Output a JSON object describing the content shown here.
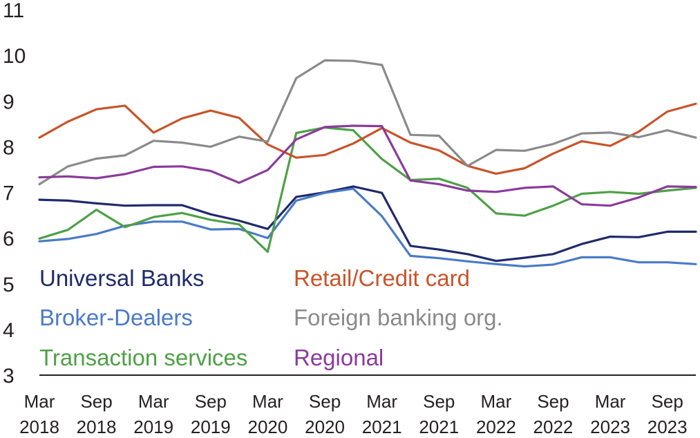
{
  "chart_data": {
    "type": "line",
    "title": "",
    "xlabel": "",
    "ylabel": "",
    "ylim": [
      3,
      11
    ],
    "yticks": [
      3,
      4,
      5,
      6,
      7,
      8,
      9,
      10,
      11
    ],
    "grid": false,
    "legend_position": "bottom-left inside plot",
    "categories": [
      "Mar 2018",
      "Jun 2018",
      "Sep 2018",
      "Dec 2018",
      "Mar 2019",
      "Jun 2019",
      "Sep 2019",
      "Dec 2019",
      "Mar 2020",
      "Jun 2020",
      "Sep 2020",
      "Dec 2020",
      "Mar 2021",
      "Jun 2021",
      "Sep 2021",
      "Dec 2021",
      "Mar 2022",
      "Jun 2022",
      "Sep 2022",
      "Dec 2022",
      "Mar 2023",
      "Jun 2023",
      "Sep 2023",
      "Dec 2023"
    ],
    "x_tick_labels": [
      {
        "month": "Mar",
        "year": "2018"
      },
      {
        "month": "Sep",
        "year": "2018"
      },
      {
        "month": "Mar",
        "year": "2019"
      },
      {
        "month": "Sep",
        "year": "2019"
      },
      {
        "month": "Mar",
        "year": "2020"
      },
      {
        "month": "Sep",
        "year": "2020"
      },
      {
        "month": "Mar",
        "year": "2021"
      },
      {
        "month": "Sep",
        "year": "2021"
      },
      {
        "month": "Mar",
        "year": "2022"
      },
      {
        "month": "Sep",
        "year": "2022"
      },
      {
        "month": "Mar",
        "year": "2023"
      },
      {
        "month": "Sep",
        "year": "2023"
      }
    ],
    "series": [
      {
        "name": "Universal Banks",
        "color": "#1f2a6b",
        "values": [
          6.84,
          6.82,
          6.76,
          6.71,
          6.72,
          6.72,
          6.52,
          6.38,
          6.2,
          6.9,
          7.0,
          7.13,
          6.99,
          5.83,
          5.75,
          5.65,
          5.5,
          5.57,
          5.65,
          5.87,
          6.03,
          6.02,
          6.14,
          6.14
        ]
      },
      {
        "name": "Broker-Dealers",
        "color": "#4a7ac8",
        "values": [
          5.93,
          5.98,
          6.09,
          6.27,
          6.36,
          6.36,
          6.19,
          6.2,
          6.0,
          6.82,
          6.99,
          7.08,
          6.48,
          5.61,
          5.56,
          5.49,
          5.43,
          5.38,
          5.42,
          5.58,
          5.58,
          5.47,
          5.47,
          5.43
        ]
      },
      {
        "name": "Transaction services",
        "color": "#4ea046",
        "values": [
          5.99,
          6.18,
          6.62,
          6.24,
          6.46,
          6.55,
          6.4,
          6.3,
          5.7,
          8.3,
          8.42,
          8.36,
          7.73,
          7.27,
          7.3,
          7.1,
          6.54,
          6.49,
          6.71,
          6.97,
          7.01,
          6.97,
          7.04,
          7.1
        ]
      },
      {
        "name": "Retail/Credit card",
        "color": "#c8542a",
        "values": [
          8.2,
          8.55,
          8.82,
          8.9,
          8.31,
          8.62,
          8.79,
          8.63,
          8.05,
          7.76,
          7.82,
          8.07,
          8.41,
          8.09,
          7.92,
          7.58,
          7.41,
          7.53,
          7.85,
          8.12,
          8.02,
          8.33,
          8.77,
          8.94
        ]
      },
      {
        "name": "Foreign banking org.",
        "color": "#8a8a8a",
        "values": [
          7.18,
          7.57,
          7.74,
          7.81,
          8.13,
          8.09,
          8.0,
          8.22,
          8.11,
          9.5,
          9.89,
          9.88,
          9.79,
          8.26,
          8.24,
          7.58,
          7.93,
          7.91,
          8.06,
          8.29,
          8.31,
          8.21,
          8.36,
          8.2
        ]
      },
      {
        "name": "Regional",
        "color": "#8b3a9c",
        "values": [
          7.33,
          7.35,
          7.31,
          7.4,
          7.56,
          7.57,
          7.47,
          7.21,
          7.49,
          8.16,
          8.43,
          8.46,
          8.45,
          7.26,
          7.18,
          7.04,
          7.01,
          7.1,
          7.13,
          6.74,
          6.71,
          6.89,
          7.13,
          7.12
        ]
      }
    ]
  }
}
